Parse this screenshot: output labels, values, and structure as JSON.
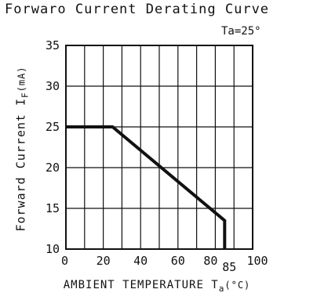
{
  "chart_data": {
    "type": "line",
    "title": "Forwaro Current Derating Curve",
    "condition": "Ta=25°",
    "ylabel": "Forward Current I",
    "ylabel_sub": "F",
    "ylabel_unit": "(mA)",
    "xlabel": "AMBIENT TEMPERATURE T",
    "xlabel_sub": "a",
    "xlabel_unit": "(°C)",
    "xlim": [
      0,
      100
    ],
    "ylim": [
      10,
      35
    ],
    "x_ticks": [
      {
        "value": 0,
        "label": "0"
      },
      {
        "value": 20,
        "label": "20"
      },
      {
        "value": 40,
        "label": "40"
      },
      {
        "value": 60,
        "label": "60"
      },
      {
        "value": 80,
        "label": "80"
      },
      {
        "value": 85,
        "label": "85"
      },
      {
        "value": 100,
        "label": "100"
      }
    ],
    "y_ticks": [
      {
        "value": 10,
        "label": "10"
      },
      {
        "value": 15,
        "label": "15"
      },
      {
        "value": 20,
        "label": "20"
      },
      {
        "value": 25,
        "label": "25"
      },
      {
        "value": 30,
        "label": "30"
      },
      {
        "value": 35,
        "label": "35"
      }
    ],
    "x_minor_step": 10,
    "grid": true,
    "series": [
      {
        "x": [
          0,
          25,
          85,
          85
        ],
        "y": [
          25,
          25,
          13.5,
          10
        ]
      }
    ]
  }
}
